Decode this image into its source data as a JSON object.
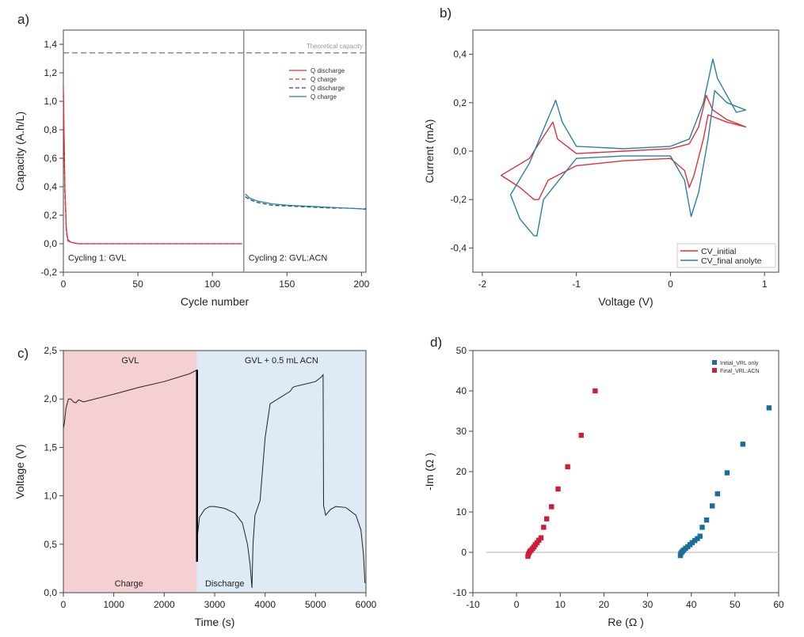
{
  "colors": {
    "red": "#e0313d",
    "blue": "#2a7fa6",
    "dark": "#2c4a7a",
    "shade_red": "#f2c4c7",
    "shade_blue": "#d6e6f2",
    "sq_blue": "#1a6e9a",
    "sq_red": "#cc1f3a"
  },
  "chart_data": [
    {
      "panel": "a)",
      "type": "line",
      "xlabel": "Cycle number",
      "ylabel": "Capacity (A.h/L)",
      "xlim": [
        0,
        203
      ],
      "ylim": [
        -0.2,
        1.5
      ],
      "xticks": [
        "0",
        "50",
        "100",
        "150",
        "200"
      ],
      "yticks": [
        "-0,2",
        "0,0",
        "0,2",
        "0,4",
        "0,6",
        "0,8",
        "1,0",
        "1,2",
        "1,4"
      ],
      "reference_line": {
        "label": "Theoretical capacity",
        "y": 1.34
      },
      "divider_x": 121,
      "annotations": [
        "Cycling 1: GVL",
        "Cycling 2: GVL:ACN"
      ],
      "legend": [
        "Q discharge",
        "Q charge",
        "Q discharge",
        "Q charge"
      ],
      "series": [
        {
          "legend_index": 0,
          "x": [
            0,
            1,
            2,
            3,
            5,
            10,
            20,
            40,
            60,
            80,
            100,
            120
          ],
          "y": [
            1.1,
            0.4,
            0.1,
            0.03,
            0.01,
            0,
            0,
            0,
            0,
            0,
            0,
            0
          ]
        },
        {
          "legend_index": 1,
          "x": [
            0,
            1,
            2,
            3,
            5,
            10,
            20,
            40,
            60,
            80,
            100,
            120
          ],
          "y": [
            1.05,
            0.35,
            0.08,
            0.02,
            0.01,
            0,
            0,
            0,
            0,
            0,
            0,
            0
          ]
        },
        {
          "legend_index": 2,
          "x": [
            122,
            125,
            130,
            140,
            150,
            160,
            170,
            180,
            190,
            200,
            203
          ],
          "y": [
            0.33,
            0.31,
            0.29,
            0.27,
            0.265,
            0.26,
            0.255,
            0.25,
            0.25,
            0.245,
            0.245
          ]
        },
        {
          "legend_index": 3,
          "x": [
            122,
            123,
            125,
            130,
            140,
            150,
            160,
            170,
            180,
            190,
            200,
            203
          ],
          "y": [
            0.35,
            0.34,
            0.32,
            0.3,
            0.28,
            0.27,
            0.265,
            0.26,
            0.255,
            0.25,
            0.245,
            0.24
          ]
        }
      ]
    },
    {
      "panel": "b)",
      "type": "line",
      "xlabel": "Voltage     (V)",
      "ylabel": "Current (mA)",
      "xlim": [
        -2.1,
        1.15
      ],
      "ylim": [
        -0.5,
        0.5
      ],
      "xticks": [
        "-2",
        "-1",
        "0",
        "1"
      ],
      "yticks": [
        "-0,4",
        "-0,2",
        "0,0",
        "0,2",
        "0,4"
      ],
      "series": [
        {
          "name": "CV_initial",
          "x": [
            0.8,
            0.6,
            0.45,
            0.38,
            0.3,
            0.2,
            0.0,
            -0.5,
            -1.0,
            -1.2,
            -1.25,
            -1.35,
            -1.5,
            -1.8,
            -1.6,
            -1.45,
            -1.4,
            -1.3,
            -1.0,
            -0.5,
            0.0,
            0.15,
            0.2,
            0.25,
            0.35,
            0.4,
            0.6,
            0.8
          ],
          "y": [
            0.1,
            0.13,
            0.17,
            0.23,
            0.1,
            0.03,
            0.01,
            0.0,
            -0.01,
            0.05,
            0.12,
            0.06,
            -0.03,
            -0.1,
            -0.15,
            -0.2,
            -0.2,
            -0.12,
            -0.06,
            -0.04,
            -0.03,
            -0.08,
            -0.15,
            -0.1,
            0.05,
            0.15,
            0.12,
            0.1
          ]
        },
        {
          "name": "CV_final anolyte",
          "x": [
            0.8,
            0.7,
            0.5,
            0.45,
            0.35,
            0.2,
            0.0,
            -0.5,
            -1.0,
            -1.15,
            -1.22,
            -1.35,
            -1.5,
            -1.7,
            -1.6,
            -1.45,
            -1.42,
            -1.35,
            -1.0,
            -0.5,
            0.0,
            0.15,
            0.22,
            0.3,
            0.4,
            0.47,
            0.6,
            0.8
          ],
          "y": [
            0.17,
            0.16,
            0.3,
            0.38,
            0.2,
            0.05,
            0.02,
            0.01,
            0.02,
            0.12,
            0.21,
            0.09,
            -0.05,
            -0.18,
            -0.28,
            -0.35,
            -0.35,
            -0.2,
            -0.03,
            -0.02,
            -0.02,
            -0.12,
            -0.27,
            -0.17,
            0.05,
            0.25,
            0.2,
            0.17
          ]
        }
      ]
    },
    {
      "panel": "c)",
      "type": "line",
      "xlabel": "Time (s)",
      "ylabel": "Voltage (V)",
      "xlim": [
        0,
        6000
      ],
      "ylim": [
        0,
        2.5
      ],
      "xticks": [
        "0",
        "1000",
        "2000",
        "3000",
        "4000",
        "5000",
        "6000"
      ],
      "yticks": [
        "0,0",
        "0,5",
        "1,0",
        "1,5",
        "2,0",
        "2,5"
      ],
      "regions": [
        {
          "label": "GVL",
          "x": [
            0,
            2650
          ],
          "color_key": "shade_red"
        },
        {
          "label": "GVL + 0.5 mL ACN",
          "x": [
            2650,
            6000
          ],
          "color_key": "shade_blue"
        }
      ],
      "annotations": [
        "Charge",
        "Discharge"
      ],
      "series": [
        {
          "x": [
            0,
            20,
            50,
            100,
            150,
            200,
            250,
            300,
            350,
            400,
            1000,
            1500,
            2000,
            2500,
            2650,
            2650,
            2660,
            2700,
            2800,
            2900,
            3000,
            3200,
            3400,
            3550,
            3650,
            3700,
            3740,
            3760,
            3800,
            3900,
            4000,
            4100,
            4500,
            4550,
            4600,
            5000,
            5100,
            5150,
            5160,
            5200,
            5300,
            5400,
            5600,
            5800,
            5900,
            5950,
            5980
          ],
          "y": [
            1.7,
            1.75,
            1.9,
            2.0,
            2.0,
            1.97,
            1.96,
            1.99,
            1.98,
            1.97,
            2.05,
            2.12,
            2.18,
            2.26,
            2.3,
            0.32,
            0.6,
            0.78,
            0.86,
            0.89,
            0.89,
            0.87,
            0.82,
            0.72,
            0.5,
            0.3,
            0.05,
            0.5,
            0.8,
            0.95,
            1.6,
            1.95,
            2.08,
            2.12,
            2.13,
            2.18,
            2.22,
            2.25,
            0.9,
            0.8,
            0.86,
            0.89,
            0.88,
            0.8,
            0.65,
            0.4,
            0.1
          ]
        }
      ]
    },
    {
      "panel": "d)",
      "type": "scatter",
      "xlabel": "Re (Ω )",
      "ylabel": "-Im (Ω )",
      "xlim": [
        -10,
        60
      ],
      "ylim": [
        -10,
        50
      ],
      "xticks": [
        "-10",
        "0",
        "10",
        "20",
        "30",
        "40",
        "50",
        "60"
      ],
      "yticks": [
        "-10",
        "0",
        "10",
        "20",
        "30",
        "40",
        "50"
      ],
      "zero_line": true,
      "series": [
        {
          "name": "Initial_VRL only",
          "x": [
            37.5,
            37.6,
            37.8,
            38.0,
            38.3,
            38.7,
            39.2,
            39.7,
            40.2,
            40.8,
            41.4,
            42.0,
            42.5,
            43.5,
            44.8,
            46.0,
            48.2,
            51.8,
            57.8
          ],
          "y": [
            -0.8,
            -0.3,
            0.0,
            0.3,
            0.6,
            1.0,
            1.4,
            1.9,
            2.4,
            2.9,
            3.4,
            4.0,
            6.2,
            8.0,
            11.5,
            14.5,
            19.7,
            26.8,
            35.8
          ]
        },
        {
          "name": "Final_VRL:ACN",
          "x": [
            2.6,
            2.7,
            2.9,
            3.1,
            3.4,
            3.7,
            4.0,
            4.3,
            4.7,
            5.1,
            5.6,
            6.2,
            6.9,
            8.0,
            9.5,
            11.7,
            14.8,
            18.0
          ],
          "y": [
            -1.0,
            -0.5,
            -0.1,
            0.3,
            0.6,
            1.0,
            1.4,
            1.9,
            2.4,
            3.0,
            3.6,
            6.2,
            8.3,
            11.3,
            15.7,
            21.2,
            29.0,
            40.0
          ]
        }
      ]
    }
  ]
}
